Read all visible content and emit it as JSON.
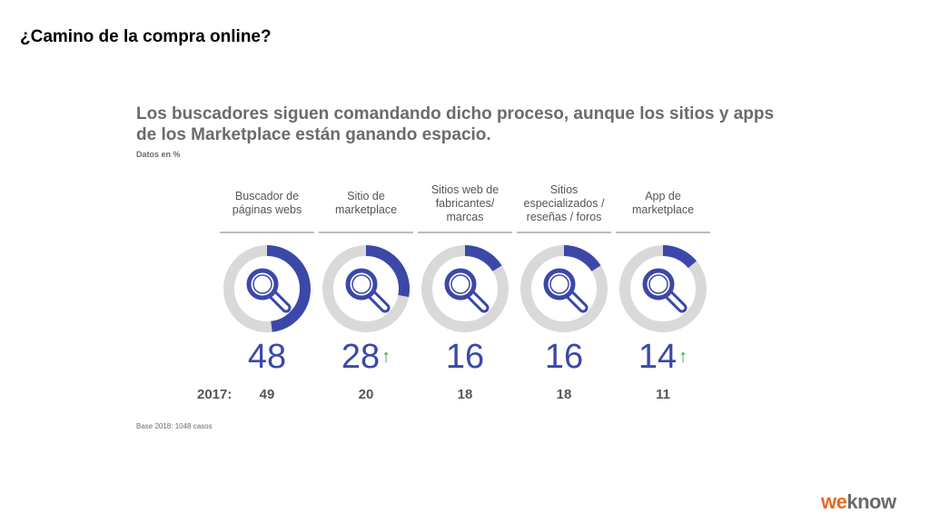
{
  "slide_title": "¿Camino de la compra online?",
  "headline": {
    "line1": "Los buscadores siguen comandando dicho proceso, aunque los sitios y apps",
    "line2": "de los Marketplace están ganando espacio."
  },
  "data_note": "Datos en %",
  "year_label": "2017:",
  "base_note": "Base 2018: 1048 casos",
  "logo": {
    "we": "we",
    "know": "know"
  },
  "colors": {
    "accent": "#3b48a8",
    "ring_bg": "#d9d9d9",
    "up_arrow": "#3aa53a"
  },
  "chart_data": {
    "type": "donut",
    "unit": "%",
    "items": [
      {
        "label": "Buscador de páginas webs",
        "value": 48,
        "prev_2017": 49,
        "up_arrow": false
      },
      {
        "label": "Sitio de marketplace",
        "value": 28,
        "prev_2017": 20,
        "up_arrow": true
      },
      {
        "label": "Sitios web de fabricantes/ marcas",
        "value": 16,
        "prev_2017": 18,
        "up_arrow": false
      },
      {
        "label": "Sitios especializados / reseñas / foros",
        "value": 16,
        "prev_2017": 18,
        "up_arrow": false
      },
      {
        "label": "App de marketplace",
        "value": 14,
        "prev_2017": 11,
        "up_arrow": true
      }
    ],
    "arrow_glyph": "↑"
  }
}
